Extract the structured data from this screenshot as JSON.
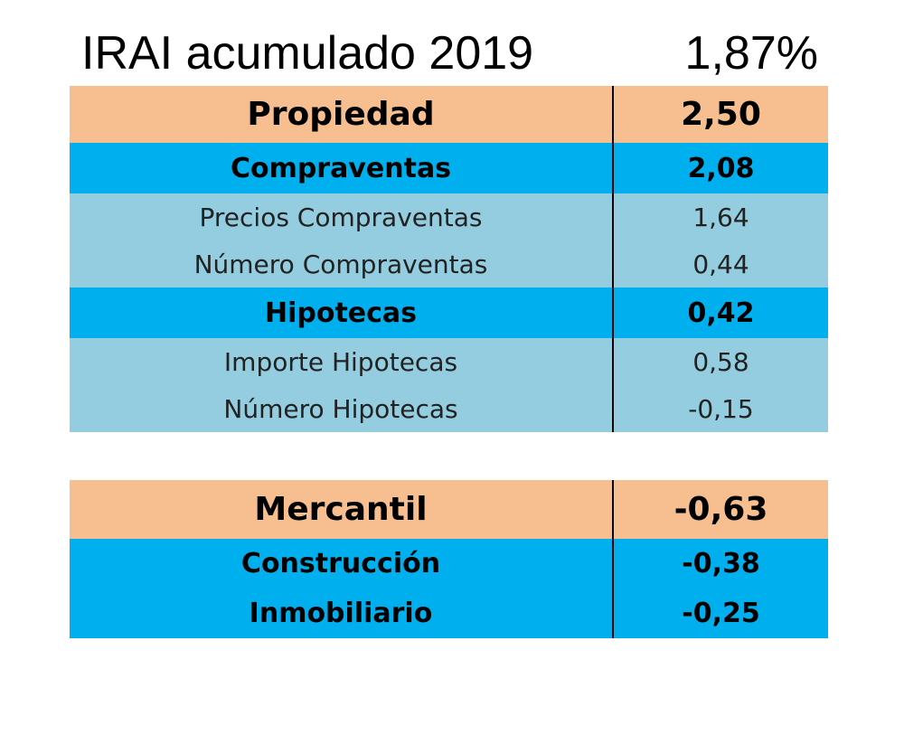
{
  "title": {
    "label": "IRAI acumulado 2019",
    "value": "1,87%"
  },
  "propiedad": {
    "header": {
      "label": "Propiedad",
      "value": "2,50"
    },
    "compraventas": {
      "label": "Compraventas",
      "value": "2,08"
    },
    "compraventas_items": [
      {
        "label": "Precios Compraventas",
        "value": "1,64"
      },
      {
        "label": "Número Compraventas",
        "value": "0,44"
      }
    ],
    "hipotecas": {
      "label": "Hipotecas",
      "value": "0,42"
    },
    "hipotecas_items": [
      {
        "label": "Importe Hipotecas",
        "value": "0,58"
      },
      {
        "label": "Número Hipotecas",
        "value": "-0,15"
      }
    ]
  },
  "mercantil": {
    "header": {
      "label": "Mercantil",
      "value": "-0,63"
    },
    "items": [
      {
        "label": "Construcción",
        "value": "-0,38"
      },
      {
        "label": "Inmobiliario",
        "value": "-0,25"
      }
    ]
  },
  "colors": {
    "orange": "#f7bf8f",
    "blue": "#00b0ee",
    "light_blue": "#93cddf"
  }
}
